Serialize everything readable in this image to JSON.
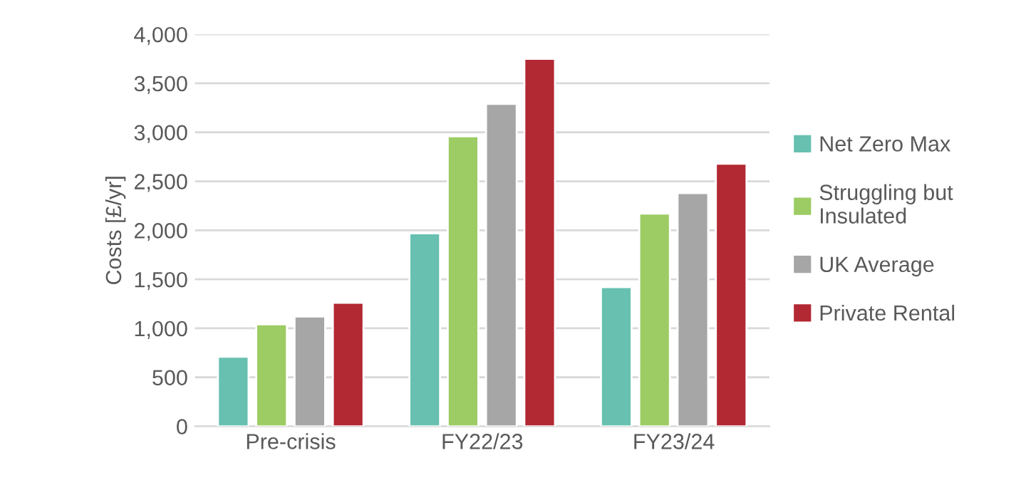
{
  "chart_data": {
    "type": "bar",
    "ylabel": "Costs [£/yr]",
    "categories": [
      "Pre-crisis",
      "FY22/23",
      "FY23/24"
    ],
    "series": [
      {
        "name": "Net Zero Max",
        "color": "#67c0b0",
        "values": [
          710,
          1970,
          1420
        ]
      },
      {
        "name": "Struggling but\nInsulated",
        "color": "#9ccc63",
        "values": [
          1040,
          2960,
          2170
        ]
      },
      {
        "name": "UK Average",
        "color": "#a6a6a6",
        "values": [
          1120,
          3290,
          2380
        ]
      },
      {
        "name": "Private Rental",
        "color": "#b22833",
        "values": [
          1260,
          3750,
          2680
        ]
      }
    ],
    "ylim": [
      0,
      4000
    ],
    "yticks": [
      {
        "value": 0,
        "label": "0"
      },
      {
        "value": 500,
        "label": "500"
      },
      {
        "value": 1000,
        "label": "1,000"
      },
      {
        "value": 1500,
        "label": "1,500"
      },
      {
        "value": 2000,
        "label": "2,000"
      },
      {
        "value": 2500,
        "label": "2,500"
      },
      {
        "value": 3000,
        "label": "3,000"
      },
      {
        "value": 3500,
        "label": "3,500"
      },
      {
        "value": 4000,
        "label": "4,000"
      }
    ],
    "grid": "y",
    "legend": "right"
  }
}
